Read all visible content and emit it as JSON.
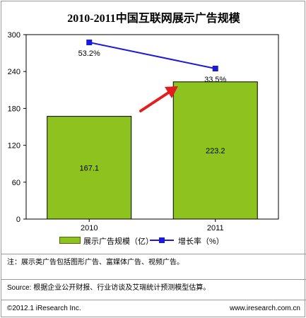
{
  "chart_data": {
    "type": "bar",
    "title": "2010-2011中国互联网展示广告规模",
    "categories": [
      "2010",
      "2011"
    ],
    "ylim": [
      0,
      300
    ],
    "yticks": [
      "0",
      "60",
      "120",
      "180",
      "240",
      "300"
    ],
    "series": [
      {
        "name": "展示广告规模（亿）",
        "type": "bar",
        "values": [
          167.1,
          223.2
        ],
        "labels": [
          "167.1",
          "223.2"
        ],
        "color": "#8dc21f"
      },
      {
        "name": "增长率（%）",
        "type": "line",
        "values": [
          53.2,
          33.5
        ],
        "labels": [
          "53.2%",
          "33.5%"
        ],
        "color": "#1a1adc"
      }
    ],
    "arrow_color": "#e31e1e",
    "legend_position": "bottom"
  },
  "notes": {
    "note": "注：展示类广告包括图形广告、富媒体广告、视频广告。",
    "source": "Source: 根据企业公开财报、行业访谈及艾瑞统计预测模型估算。"
  },
  "footer": {
    "copyright": "©2012.1 iResearch Inc.",
    "website": "www.iresearch.com.cn"
  }
}
